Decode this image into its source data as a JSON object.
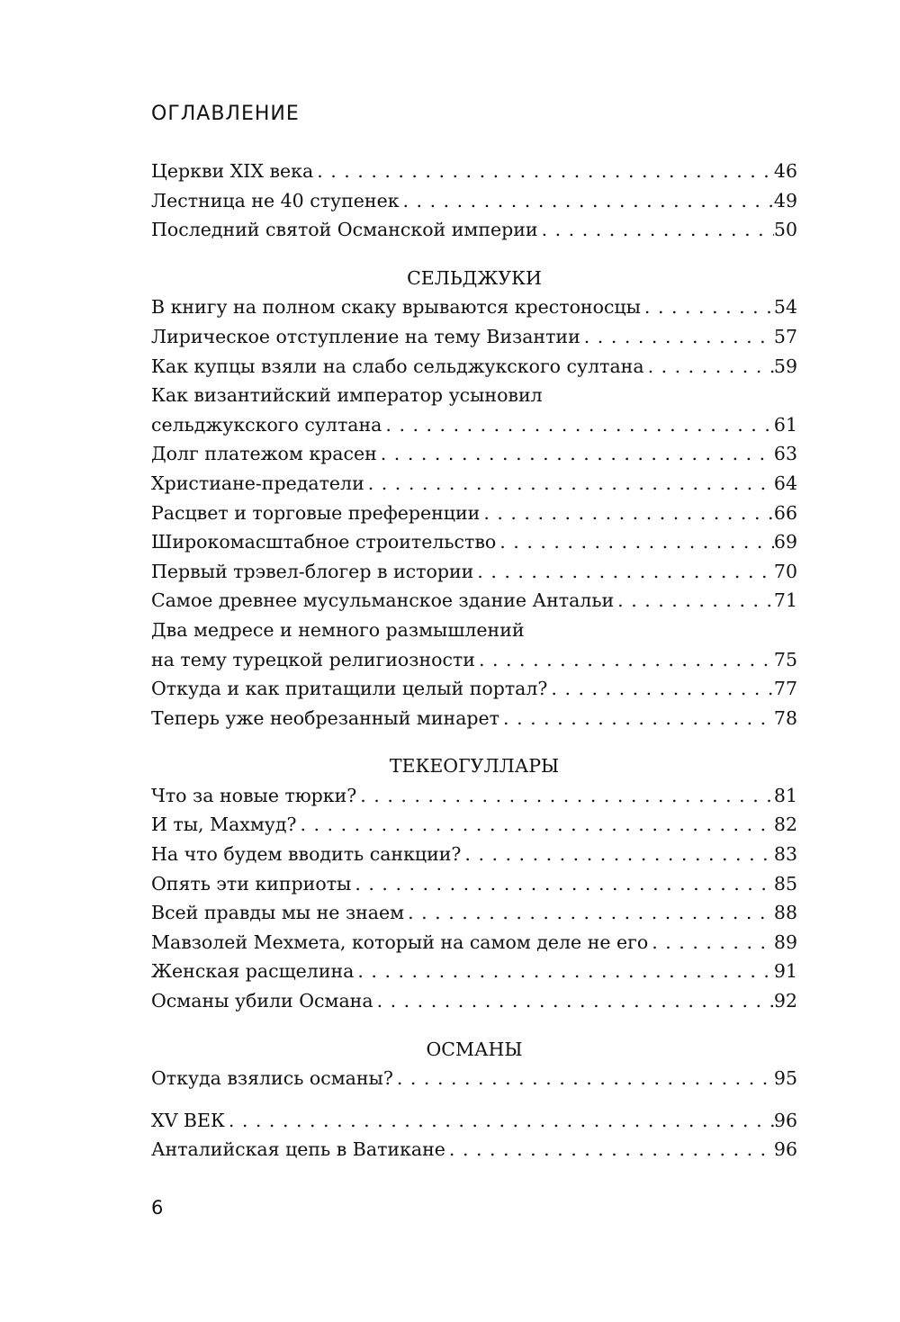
{
  "heading": "ОГЛАВЛЕНИЕ",
  "blocks": [
    {
      "section": "",
      "entries": [
        {
          "lines": [
            "Церкви XIX века"
          ],
          "page": "46"
        },
        {
          "lines": [
            "Лестница не 40 ступенек"
          ],
          "page": "49"
        },
        {
          "lines": [
            "Последний святой Османской империи"
          ],
          "page": "50"
        }
      ]
    },
    {
      "section": "СЕЛЬДЖУКИ",
      "entries": [
        {
          "lines": [
            "В книгу на полном скаку врываются крестоносцы"
          ],
          "page": "54"
        },
        {
          "lines": [
            "Лирическое отступление на тему Византии"
          ],
          "page": "57"
        },
        {
          "lines": [
            "Как купцы взяли на слабо сельджукского султана"
          ],
          "page": "59"
        },
        {
          "lines": [
            "Как византийский император усыновил",
            "сельджукского султана"
          ],
          "page": "61"
        },
        {
          "lines": [
            "Долг платежом красен"
          ],
          "page": "63"
        },
        {
          "lines": [
            "Христиане-предатели"
          ],
          "page": "64"
        },
        {
          "lines": [
            "Расцвет и торговые преференции"
          ],
          "page": "66"
        },
        {
          "lines": [
            "Широкомасштабное строительство"
          ],
          "page": "69"
        },
        {
          "lines": [
            "Первый трэвел-блогер в истории"
          ],
          "page": "70"
        },
        {
          "lines": [
            "Самое древнее мусульманское здание Антальи"
          ],
          "page": "71"
        },
        {
          "lines": [
            "Два медресе и немного размышлений",
            "на тему турецкой религиозности"
          ],
          "page": "75"
        },
        {
          "lines": [
            "Откуда и как притащили целый портал?"
          ],
          "page": "77"
        },
        {
          "lines": [
            "Теперь уже необрезанный минарет"
          ],
          "page": "78"
        }
      ]
    },
    {
      "section": "ТЕКЕОГУЛЛАРЫ",
      "entries": [
        {
          "lines": [
            "Что за новые тюрки?"
          ],
          "page": "81"
        },
        {
          "lines": [
            "И ты, Махмуд?"
          ],
          "page": "82"
        },
        {
          "lines": [
            "На что будем вводить санкции?"
          ],
          "page": "83"
        },
        {
          "lines": [
            "Опять эти киприоты"
          ],
          "page": "85"
        },
        {
          "lines": [
            "Всей правды мы не знаем"
          ],
          "page": "88"
        },
        {
          "lines": [
            "Мавзолей Мехмета, который на самом деле не его"
          ],
          "page": "89"
        },
        {
          "lines": [
            "Женская расщелина"
          ],
          "page": "91"
        },
        {
          "lines": [
            "Османы убили Османа"
          ],
          "page": "92"
        }
      ]
    },
    {
      "section": "ОСМАНЫ",
      "entries": [
        {
          "lines": [
            "Откуда взялись османы?"
          ],
          "page": "95"
        },
        {
          "gap": true,
          "lines": [
            "XV ВЕК"
          ],
          "page": "96"
        },
        {
          "lines": [
            "Анталийская цепь в Ватикане"
          ],
          "page": "96"
        }
      ]
    }
  ],
  "page_number": "6"
}
